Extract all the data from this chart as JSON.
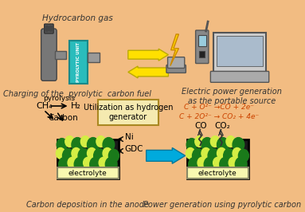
{
  "bg_color": "#F2BC82",
  "top_left_label": "Hydrocarbon gas",
  "top_left_sublabel": "Charging of the  pyrolytic  carbon fuel",
  "top_right_label": "Electric power generation\nas the portable source",
  "bottom_left_label": "Carbon deposition in the anode",
  "bottom_right_label": "Power generation using pyrolytic carbon",
  "box_label": "Utilization as hydrogen\ngenerator",
  "ch4_label": "CH₄",
  "pyrolysis_label": "pyrolysis",
  "h2_label": "H₂",
  "carbon_label": "Carbon",
  "ni_label": "Ni",
  "gdc_label": "GDC",
  "electrolyte_label": "electrolyte",
  "co_label": "CO",
  "co2_label": "CO₂",
  "reaction1": "C + O²⁻ →CO + 2e⁻",
  "reaction2": "C + 2O²⁻ → CO₂ + 4e⁻",
  "dark_green": "#1a7a1a",
  "yellow_green": "#d4ee44",
  "electrolyte_color": "#f8f8b0",
  "ni_black": "#1a1a1a",
  "arrow_yellow": "#FFE000",
  "arrow_blue": "#00AADD",
  "box_color": "#F5EAB0",
  "reaction_color": "#cc4400",
  "cylinder_color": "#888888",
  "teal_color": "#2ABCBC",
  "text_color": "#333333"
}
